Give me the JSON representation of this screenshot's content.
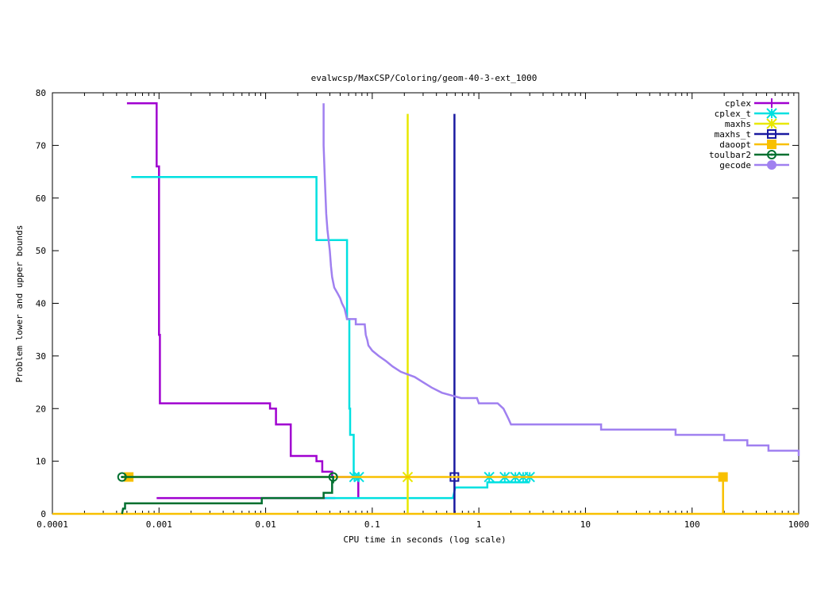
{
  "chart_data": {
    "type": "line",
    "title": "evalwcsp/MaxCSP/Coloring/geom-40-3-ext_1000",
    "xlabel": "CPU time in seconds (log scale)",
    "ylabel": "Problem lower and upper bounds",
    "xscale": "log",
    "xlim": [
      0.0001,
      1000
    ],
    "ylim": [
      0,
      80
    ],
    "xticks": [
      {
        "value": 0.0001,
        "label": "0.0001"
      },
      {
        "value": 0.001,
        "label": "0.001"
      },
      {
        "value": 0.01,
        "label": "0.01"
      },
      {
        "value": 0.1,
        "label": "0.1"
      },
      {
        "value": 1,
        "label": "1"
      },
      {
        "value": 10,
        "label": "10"
      },
      {
        "value": 100,
        "label": "100"
      },
      {
        "value": 1000,
        "label": "1000"
      }
    ],
    "yticks": [
      {
        "value": 0,
        "label": "0"
      },
      {
        "value": 10,
        "label": "10"
      },
      {
        "value": 20,
        "label": "20"
      },
      {
        "value": 30,
        "label": "30"
      },
      {
        "value": 40,
        "label": "40"
      },
      {
        "value": 50,
        "label": "50"
      },
      {
        "value": 60,
        "label": "60"
      },
      {
        "value": 70,
        "label": "70"
      },
      {
        "value": 80,
        "label": "80"
      }
    ],
    "grid": false,
    "legend_position": "top-right",
    "series": [
      {
        "name": "cplex",
        "color": "#a000d0",
        "marker": "plus",
        "segments": [
          [
            [
              0.0005,
              78
            ],
            [
              0.00095,
              78
            ],
            [
              0.00095,
              66
            ],
            [
              0.001,
              66
            ],
            [
              0.001,
              34
            ],
            [
              0.00102,
              34
            ],
            [
              0.00102,
              21
            ],
            [
              0.011,
              21
            ],
            [
              0.011,
              20
            ],
            [
              0.0125,
              20
            ],
            [
              0.0125,
              17
            ],
            [
              0.0172,
              17
            ],
            [
              0.0172,
              11
            ],
            [
              0.03,
              11
            ],
            [
              0.03,
              10
            ],
            [
              0.034,
              10
            ],
            [
              0.034,
              8
            ],
            [
              0.042,
              8
            ],
            [
              0.042,
              7
            ],
            [
              0.074,
              7
            ],
            [
              0.074,
              3
            ]
          ],
          [
            [
              0.00095,
              3
            ],
            [
              0.045,
              3
            ]
          ]
        ],
        "markers": []
      },
      {
        "name": "cplex_t",
        "color": "#00e0e0",
        "marker": "star",
        "segments": [
          [
            [
              0.00055,
              64
            ],
            [
              0.03,
              64
            ],
            [
              0.03,
              52
            ],
            [
              0.058,
              52
            ],
            [
              0.058,
              37
            ],
            [
              0.061,
              37
            ],
            [
              0.061,
              20
            ],
            [
              0.062,
              20
            ],
            [
              0.062,
              15
            ],
            [
              0.067,
              15
            ],
            [
              0.067,
              7
            ],
            [
              0.075,
              7
            ]
          ],
          [
            [
              0.036,
              3
            ],
            [
              0.57,
              3
            ],
            [
              0.6,
              5
            ],
            [
              1.2,
              5
            ],
            [
              1.2,
              6
            ],
            [
              3.0,
              6
            ]
          ]
        ],
        "markers": [
          [
            0.068,
            7
          ],
          [
            0.075,
            7
          ],
          [
            1.25,
            7
          ],
          [
            1.75,
            7
          ],
          [
            2.2,
            7
          ],
          [
            2.6,
            7
          ],
          [
            3.0,
            7
          ]
        ]
      },
      {
        "name": "maxhs",
        "color": "#e8e800",
        "marker": "star",
        "segments": [
          [
            [
              0.215,
              0
            ],
            [
              0.215,
              76
            ]
          ]
        ],
        "markers": [
          [
            0.215,
            7
          ]
        ]
      },
      {
        "name": "maxhs_t",
        "color": "#1a1aa0",
        "marker": "open-square",
        "segments": [
          [
            [
              0.59,
              0
            ],
            [
              0.59,
              76
            ]
          ]
        ],
        "markers": [
          [
            0.59,
            7
          ]
        ]
      },
      {
        "name": "daoopt",
        "color": "#f8c000",
        "marker": "filled-square",
        "segments": [
          [
            [
              0.00045,
              7
            ],
            [
              195,
              7
            ],
            [
              195,
              0
            ]
          ],
          [
            [
              0.0001,
              0
            ],
            [
              1000,
              0
            ]
          ]
        ],
        "markers": [
          [
            0.00052,
            7
          ],
          [
            195,
            7
          ]
        ]
      },
      {
        "name": "toulbar2",
        "color": "#007030",
        "marker": "open-circle",
        "segments": [
          [
            [
              0.00045,
              7
            ],
            [
              0.043,
              7
            ]
          ],
          [
            [
              0.00045,
              0
            ],
            [
              0.00046,
              1
            ],
            [
              0.00048,
              1
            ],
            [
              0.00048,
              2
            ],
            [
              0.0092,
              2
            ],
            [
              0.0092,
              3
            ],
            [
              0.035,
              3
            ],
            [
              0.035,
              4
            ],
            [
              0.042,
              4
            ],
            [
              0.042,
              6
            ],
            [
              0.043,
              6
            ],
            [
              0.043,
              7
            ]
          ]
        ],
        "markers": [
          [
            0.00045,
            7
          ],
          [
            0.043,
            7
          ]
        ]
      },
      {
        "name": "gecode",
        "color": "#a080f0",
        "marker": "filled-circle",
        "segments": [
          [
            [
              0.035,
              78
            ],
            [
              0.035,
              70
            ],
            [
              0.036,
              63
            ],
            [
              0.037,
              57
            ],
            [
              0.038,
              54
            ],
            [
              0.039,
              52
            ],
            [
              0.04,
              50
            ],
            [
              0.041,
              47
            ],
            [
              0.042,
              45
            ],
            [
              0.044,
              43
            ],
            [
              0.047,
              42
            ],
            [
              0.05,
              41
            ],
            [
              0.052,
              40
            ],
            [
              0.055,
              39
            ],
            [
              0.058,
              37
            ],
            [
              0.07,
              37
            ],
            [
              0.07,
              36
            ],
            [
              0.085,
              36
            ],
            [
              0.087,
              34
            ],
            [
              0.09,
              33
            ],
            [
              0.092,
              32
            ],
            [
              0.1,
              31
            ],
            [
              0.115,
              30
            ],
            [
              0.135,
              29
            ],
            [
              0.155,
              28
            ],
            [
              0.185,
              27
            ],
            [
              0.25,
              26
            ],
            [
              0.3,
              25
            ],
            [
              0.36,
              24
            ],
            [
              0.45,
              23
            ],
            [
              0.68,
              22
            ],
            [
              0.96,
              22
            ],
            [
              1.0,
              21
            ],
            [
              1.5,
              21
            ],
            [
              1.7,
              20
            ],
            [
              1.8,
              19
            ],
            [
              1.9,
              18
            ],
            [
              2.0,
              17
            ],
            [
              14,
              17
            ],
            [
              14,
              16
            ],
            [
              70,
              16
            ],
            [
              70,
              15
            ],
            [
              200,
              15
            ],
            [
              200,
              14
            ],
            [
              330,
              14
            ],
            [
              330,
              13
            ],
            [
              520,
              13
            ],
            [
              520,
              12
            ],
            [
              1000,
              12
            ],
            [
              1000,
              11
            ]
          ]
        ],
        "markers": []
      }
    ]
  }
}
